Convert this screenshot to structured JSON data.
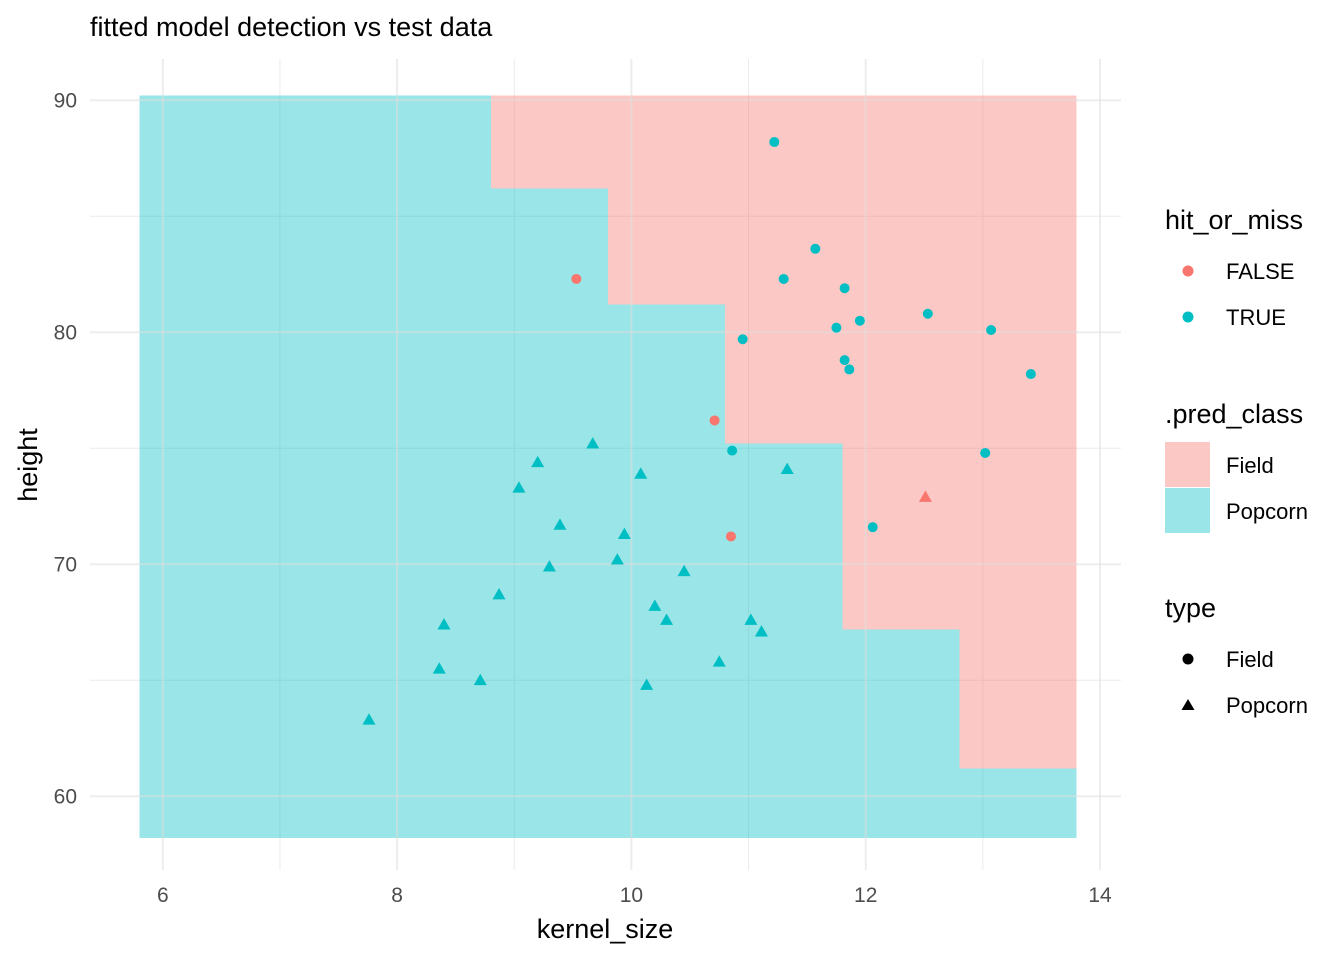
{
  "chart_data": {
    "type": "scatter",
    "title": "fitted model detection vs test data",
    "xlabel": "kernel_size",
    "ylabel": "height",
    "xlim": [
      5.8,
      13.8
    ],
    "ylim": [
      58.2,
      90.2
    ],
    "x_ticks": [
      6,
      8,
      10,
      12,
      14
    ],
    "y_ticks": [
      60,
      70,
      80,
      90
    ],
    "x_tick_labels": [
      "6",
      "8",
      "10",
      "12",
      "14"
    ],
    "y_tick_labels": [
      "60",
      "70",
      "80",
      "90"
    ],
    "grid": true,
    "background_regions": [
      {
        "class": "Popcorn",
        "x0": 5.8,
        "x1": 8.8,
        "y0": 58.2,
        "y1": 90.2
      },
      {
        "class": "Field",
        "x0": 8.8,
        "x1": 13.8,
        "y0": 86.2,
        "y1": 90.2
      },
      {
        "class": "Popcorn",
        "x0": 8.8,
        "x1": 9.8,
        "y0": 58.2,
        "y1": 86.2
      },
      {
        "class": "Field",
        "x0": 9.8,
        "x1": 13.8,
        "y0": 81.2,
        "y1": 86.2
      },
      {
        "class": "Popcorn",
        "x0": 9.8,
        "x1": 10.8,
        "y0": 58.2,
        "y1": 81.2
      },
      {
        "class": "Field",
        "x0": 10.8,
        "x1": 13.8,
        "y0": 75.2,
        "y1": 81.2
      },
      {
        "class": "Popcorn",
        "x0": 10.8,
        "x1": 11.8,
        "y0": 58.2,
        "y1": 75.2
      },
      {
        "class": "Field",
        "x0": 11.8,
        "x1": 13.8,
        "y0": 67.2,
        "y1": 75.2
      },
      {
        "class": "Popcorn",
        "x0": 11.8,
        "x1": 12.8,
        "y0": 58.2,
        "y1": 67.2
      },
      {
        "class": "Field",
        "x0": 12.8,
        "x1": 13.8,
        "y0": 61.2,
        "y1": 67.2
      },
      {
        "class": "Popcorn",
        "x0": 12.8,
        "x1": 13.8,
        "y0": 58.2,
        "y1": 61.2
      }
    ],
    "points": [
      {
        "x": 11.22,
        "y": 88.2,
        "type": "Field",
        "hit": "TRUE"
      },
      {
        "x": 11.57,
        "y": 83.6,
        "type": "Field",
        "hit": "TRUE"
      },
      {
        "x": 9.53,
        "y": 82.3,
        "type": "Field",
        "hit": "FALSE"
      },
      {
        "x": 11.3,
        "y": 82.3,
        "type": "Field",
        "hit": "TRUE"
      },
      {
        "x": 11.82,
        "y": 81.9,
        "type": "Field",
        "hit": "TRUE"
      },
      {
        "x": 12.53,
        "y": 80.8,
        "type": "Field",
        "hit": "TRUE"
      },
      {
        "x": 11.95,
        "y": 80.5,
        "type": "Field",
        "hit": "TRUE"
      },
      {
        "x": 11.75,
        "y": 80.2,
        "type": "Field",
        "hit": "TRUE"
      },
      {
        "x": 13.07,
        "y": 80.1,
        "type": "Field",
        "hit": "TRUE"
      },
      {
        "x": 10.95,
        "y": 79.7,
        "type": "Field",
        "hit": "TRUE"
      },
      {
        "x": 11.82,
        "y": 78.8,
        "type": "Field",
        "hit": "TRUE"
      },
      {
        "x": 11.86,
        "y": 78.4,
        "type": "Field",
        "hit": "TRUE"
      },
      {
        "x": 13.41,
        "y": 78.2,
        "type": "Field",
        "hit": "TRUE"
      },
      {
        "x": 10.71,
        "y": 76.2,
        "type": "Field",
        "hit": "FALSE"
      },
      {
        "x": 10.86,
        "y": 74.9,
        "type": "Field",
        "hit": "TRUE"
      },
      {
        "x": 13.02,
        "y": 74.8,
        "type": "Field",
        "hit": "TRUE"
      },
      {
        "x": 12.06,
        "y": 71.6,
        "type": "Field",
        "hit": "TRUE"
      },
      {
        "x": 10.85,
        "y": 71.2,
        "type": "Field",
        "hit": "FALSE"
      },
      {
        "x": 12.51,
        "y": 72.9,
        "type": "Popcorn",
        "hit": "FALSE"
      },
      {
        "x": 9.67,
        "y": 75.2,
        "type": "Popcorn",
        "hit": "TRUE"
      },
      {
        "x": 11.33,
        "y": 74.1,
        "type": "Popcorn",
        "hit": "TRUE"
      },
      {
        "x": 9.2,
        "y": 74.4,
        "type": "Popcorn",
        "hit": "TRUE"
      },
      {
        "x": 10.08,
        "y": 73.9,
        "type": "Popcorn",
        "hit": "TRUE"
      },
      {
        "x": 9.04,
        "y": 73.3,
        "type": "Popcorn",
        "hit": "TRUE"
      },
      {
        "x": 9.39,
        "y": 71.7,
        "type": "Popcorn",
        "hit": "TRUE"
      },
      {
        "x": 9.94,
        "y": 71.3,
        "type": "Popcorn",
        "hit": "TRUE"
      },
      {
        "x": 9.88,
        "y": 70.2,
        "type": "Popcorn",
        "hit": "TRUE"
      },
      {
        "x": 9.3,
        "y": 69.9,
        "type": "Popcorn",
        "hit": "TRUE"
      },
      {
        "x": 10.45,
        "y": 69.7,
        "type": "Popcorn",
        "hit": "TRUE"
      },
      {
        "x": 8.87,
        "y": 68.7,
        "type": "Popcorn",
        "hit": "TRUE"
      },
      {
        "x": 10.2,
        "y": 68.2,
        "type": "Popcorn",
        "hit": "TRUE"
      },
      {
        "x": 10.3,
        "y": 67.6,
        "type": "Popcorn",
        "hit": "TRUE"
      },
      {
        "x": 11.02,
        "y": 67.6,
        "type": "Popcorn",
        "hit": "TRUE"
      },
      {
        "x": 11.11,
        "y": 67.1,
        "type": "Popcorn",
        "hit": "TRUE"
      },
      {
        "x": 8.4,
        "y": 67.4,
        "type": "Popcorn",
        "hit": "TRUE"
      },
      {
        "x": 10.75,
        "y": 65.8,
        "type": "Popcorn",
        "hit": "TRUE"
      },
      {
        "x": 8.36,
        "y": 65.5,
        "type": "Popcorn",
        "hit": "TRUE"
      },
      {
        "x": 8.71,
        "y": 65.0,
        "type": "Popcorn",
        "hit": "TRUE"
      },
      {
        "x": 10.13,
        "y": 64.8,
        "type": "Popcorn",
        "hit": "TRUE"
      },
      {
        "x": 7.76,
        "y": 63.3,
        "type": "Popcorn",
        "hit": "TRUE"
      }
    ],
    "legends": {
      "hit_or_miss": {
        "title": "hit_or_miss",
        "entries": [
          {
            "label": "FALSE",
            "color": "#F8766D"
          },
          {
            "label": "TRUE",
            "color": "#00BFC4"
          }
        ]
      },
      "pred_class": {
        "title": ".pred_class",
        "entries": [
          {
            "label": "Field",
            "color": "#F8766D"
          },
          {
            "label": "Popcorn",
            "color": "#00BFC4"
          }
        ]
      },
      "type": {
        "title": "type",
        "entries": [
          {
            "label": "Field",
            "shape": "circle"
          },
          {
            "label": "Popcorn",
            "shape": "triangle"
          }
        ]
      }
    },
    "legend_position": "right",
    "colors": {
      "red": "#F8766D",
      "teal": "#00BFC4",
      "grid": "#ebebeb",
      "tick_text": "#4d4d4d"
    }
  }
}
